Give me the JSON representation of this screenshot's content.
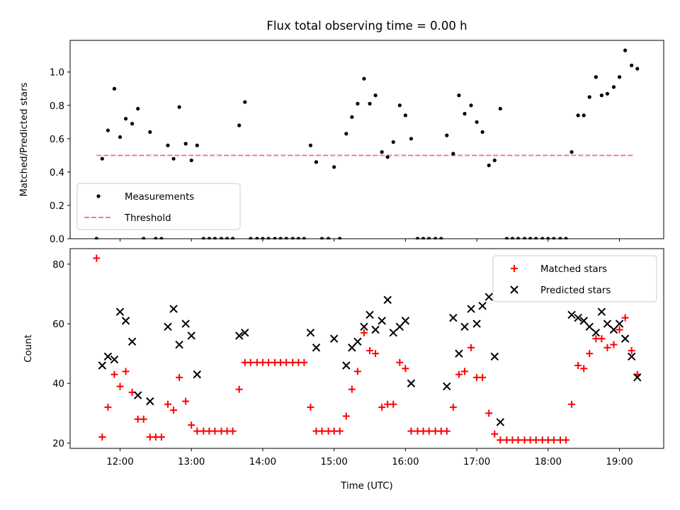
{
  "figure": {
    "title": "Flux total observing time = 0.00 h"
  },
  "chart_data": [
    {
      "type": "scatter",
      "title": "Flux total observing time = 0.00 h",
      "xlabel": "",
      "ylabel": "Matched/Predicted stars",
      "xlim": [
        11.3,
        19.62
      ],
      "ylim": [
        0,
        1.19
      ],
      "yticks": [
        0.0,
        0.2,
        0.4,
        0.6,
        0.8,
        1.0
      ],
      "ytick_labels": [
        "0.0",
        "0.2",
        "0.4",
        "0.6",
        "0.8",
        "1.0"
      ],
      "xticks": [
        12,
        13,
        14,
        15,
        16,
        17,
        18,
        19
      ],
      "legend": {
        "location": "lower-left",
        "entries": [
          "Measurements",
          "Threshold"
        ]
      },
      "threshold": {
        "name": "Threshold",
        "x": [
          11.67,
          19.2
        ],
        "y": 0.5,
        "color": "#f08080",
        "style": "dashed"
      },
      "series": [
        {
          "name": "Measurements",
          "color": "#000000",
          "marker": "dot",
          "x": [
            11.67,
            11.75,
            11.83,
            11.92,
            12.0,
            12.08,
            12.17,
            12.25,
            12.33,
            12.42,
            12.5,
            12.58,
            12.67,
            12.75,
            12.83,
            12.92,
            13.0,
            13.08,
            13.17,
            13.25,
            13.33,
            13.42,
            13.5,
            13.58,
            13.67,
            13.75,
            13.83,
            13.92,
            14.0,
            14.08,
            14.17,
            14.25,
            14.33,
            14.42,
            14.5,
            14.58,
            14.67,
            14.75,
            14.83,
            14.92,
            15.0,
            15.08,
            15.17,
            15.25,
            15.33,
            15.42,
            15.5,
            15.58,
            15.67,
            15.75,
            15.83,
            15.92,
            16.0,
            16.08,
            16.17,
            16.25,
            16.33,
            16.42,
            16.5,
            16.58,
            16.67,
            16.75,
            16.83,
            16.92,
            17.0,
            17.08,
            17.17,
            17.25,
            17.33,
            17.42,
            17.5,
            17.58,
            17.67,
            17.75,
            17.83,
            17.92,
            18.0,
            18.08,
            18.17,
            18.25,
            18.33,
            18.42,
            18.5,
            18.58,
            18.67,
            18.75,
            18.83,
            18.92,
            19.0,
            19.08,
            19.17,
            19.25
          ],
          "y": [
            0.0,
            0.48,
            0.65,
            0.9,
            0.61,
            0.72,
            0.69,
            0.78,
            0.0,
            0.64,
            0.0,
            0.0,
            0.56,
            0.48,
            0.79,
            0.57,
            0.47,
            0.56,
            0.0,
            0.0,
            0.0,
            0.0,
            0.0,
            0.0,
            0.68,
            0.82,
            0.0,
            0.0,
            0.0,
            0.0,
            0.0,
            0.0,
            0.0,
            0.0,
            0.0,
            0.0,
            0.56,
            0.46,
            0.0,
            0.0,
            0.43,
            0.0,
            0.63,
            0.73,
            0.81,
            0.96,
            0.81,
            0.86,
            0.52,
            0.49,
            0.58,
            0.8,
            0.74,
            0.6,
            0.0,
            0.0,
            0.0,
            0.0,
            0.0,
            0.62,
            0.51,
            0.86,
            0.75,
            0.8,
            0.7,
            0.64,
            0.44,
            0.47,
            0.78,
            0.0,
            0.0,
            0.0,
            0.0,
            0.0,
            0.0,
            0.0,
            0.0,
            0.0,
            0.0,
            0.0,
            0.52,
            0.74,
            0.74,
            0.85,
            0.97,
            0.86,
            0.87,
            0.91,
            0.97,
            1.13,
            1.04,
            1.02
          ]
        }
      ]
    },
    {
      "type": "scatter",
      "title": "",
      "xlabel": "Time (UTC)",
      "ylabel": "Count",
      "xlim": [
        11.3,
        19.62
      ],
      "ylim": [
        18.2,
        85.2
      ],
      "yticks": [
        20,
        40,
        60,
        80
      ],
      "ytick_labels": [
        "20",
        "40",
        "60",
        "80"
      ],
      "xticks": [
        12,
        13,
        14,
        15,
        16,
        17,
        18,
        19
      ],
      "xtick_labels": [
        "12:00",
        "13:00",
        "14:00",
        "15:00",
        "16:00",
        "17:00",
        "18:00",
        "19:00"
      ],
      "legend": {
        "location": "top-right",
        "entries": [
          "Matched stars",
          "Predicted stars"
        ]
      },
      "series": [
        {
          "name": "Matched stars",
          "color": "#ff0000",
          "marker": "plus",
          "x": [
            11.67,
            11.75,
            11.83,
            11.92,
            12.0,
            12.08,
            12.17,
            12.25,
            12.33,
            12.42,
            12.5,
            12.58,
            12.67,
            12.75,
            12.83,
            12.92,
            13.0,
            13.08,
            13.17,
            13.25,
            13.33,
            13.42,
            13.5,
            13.58,
            13.67,
            13.75,
            13.83,
            13.92,
            14.0,
            14.08,
            14.17,
            14.25,
            14.33,
            14.42,
            14.5,
            14.58,
            14.67,
            14.75,
            14.83,
            14.92,
            15.0,
            15.08,
            15.17,
            15.25,
            15.33,
            15.42,
            15.5,
            15.58,
            15.67,
            15.75,
            15.83,
            15.92,
            16.0,
            16.08,
            16.17,
            16.25,
            16.33,
            16.42,
            16.5,
            16.58,
            16.67,
            16.75,
            16.83,
            16.92,
            17.0,
            17.08,
            17.17,
            17.25,
            17.33,
            17.42,
            17.5,
            17.58,
            17.67,
            17.75,
            17.83,
            17.92,
            18.0,
            18.08,
            18.17,
            18.25,
            18.33,
            18.42,
            18.5,
            18.58,
            18.67,
            18.75,
            18.83,
            18.92,
            19.0,
            19.08,
            19.17,
            19.25
          ],
          "y": [
            82,
            22,
            32,
            43,
            39,
            44,
            37,
            28,
            28,
            22,
            22,
            22,
            33,
            31,
            42,
            34,
            26,
            24,
            24,
            24,
            24,
            24,
            24,
            24,
            38,
            47,
            47,
            47,
            47,
            47,
            47,
            47,
            47,
            47,
            47,
            47,
            32,
            24,
            24,
            24,
            24,
            24,
            29,
            38,
            44,
            57,
            51,
            50,
            32,
            33,
            33,
            47,
            45,
            24,
            24,
            24,
            24,
            24,
            24,
            24,
            32,
            43,
            44,
            52,
            42,
            42,
            30,
            23,
            21,
            21,
            21,
            21,
            21,
            21,
            21,
            21,
            21,
            21,
            21,
            21,
            33,
            46,
            45,
            50,
            55,
            55,
            52,
            53,
            58,
            62,
            51,
            43
          ]
        },
        {
          "name": "Predicted stars",
          "color": "#000000",
          "marker": "x",
          "x": [
            11.75,
            11.83,
            11.92,
            12.0,
            12.08,
            12.17,
            12.25,
            12.42,
            12.67,
            12.75,
            12.83,
            12.92,
            13.0,
            13.08,
            13.67,
            13.75,
            14.67,
            14.75,
            15.0,
            15.17,
            15.25,
            15.33,
            15.42,
            15.5,
            15.58,
            15.67,
            15.75,
            15.83,
            15.92,
            16.0,
            16.08,
            16.58,
            16.67,
            16.75,
            16.83,
            16.92,
            17.0,
            17.08,
            17.17,
            17.25,
            17.33,
            18.33,
            18.42,
            18.5,
            18.58,
            18.67,
            18.75,
            18.83,
            18.92,
            19.0,
            19.08,
            19.17,
            19.25
          ],
          "y": [
            46,
            49,
            48,
            64,
            61,
            54,
            36,
            34,
            59,
            65,
            53,
            60,
            56,
            43,
            56,
            57,
            57,
            52,
            55,
            46,
            52,
            54,
            59,
            63,
            58,
            61,
            68,
            57,
            59,
            61,
            40,
            39,
            62,
            50,
            59,
            65,
            60,
            66,
            69,
            49,
            27,
            63,
            62,
            61,
            59,
            57,
            64,
            60,
            58,
            60,
            55,
            49,
            42
          ]
        }
      ]
    }
  ]
}
